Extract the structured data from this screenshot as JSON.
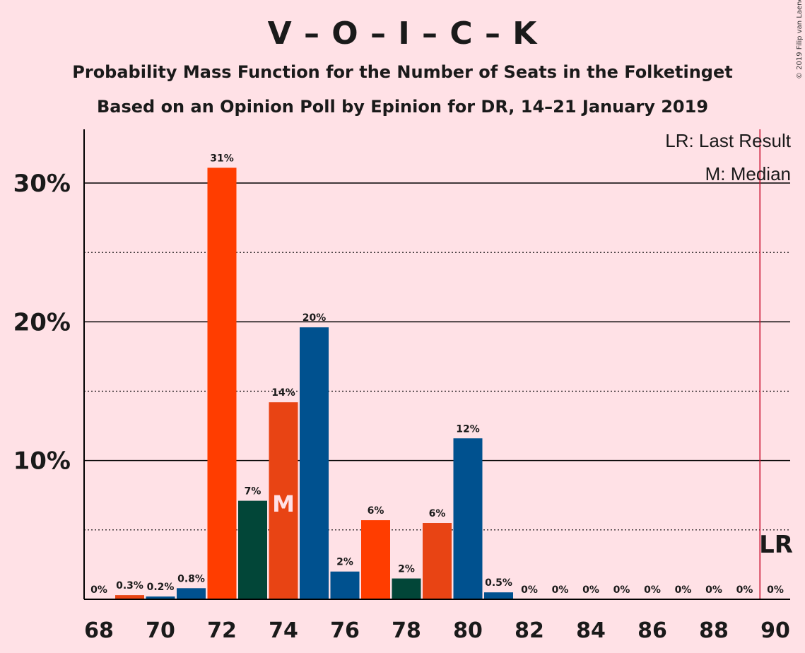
{
  "title": "V – O – I – C – K",
  "subtitle": "Probability Mass Function for the Number of Seats in the Folketinget",
  "subtitle2": "Based on an Opinion Poll by Epinion for DR, 14–21 January 2019",
  "copyright": "© 2019 Filip van Laenen",
  "legend": {
    "last_result": "LR: Last Result",
    "median": "M: Median"
  },
  "colors": {
    "background": "#FFE1E6",
    "series": [
      "#FF3D00",
      "#00518F",
      "#FF3D00",
      "#00518F",
      "#FF3D00",
      "#00457E",
      "#FF3D00",
      "#00518F",
      "#024638",
      "#E84414"
    ],
    "last_result_line": "#C8102E"
  },
  "chart_data": {
    "type": "bar",
    "title": "V – O – I – C – K",
    "xlabel": "",
    "ylabel": "",
    "x": [
      68,
      69,
      70,
      71,
      72,
      73,
      74,
      75,
      76,
      77,
      78,
      79,
      80,
      81,
      82,
      83,
      84,
      85,
      86,
      87,
      88,
      89,
      90
    ],
    "values": [
      0,
      0.3,
      0.2,
      0.8,
      31.1,
      7.1,
      14.2,
      19.6,
      2.0,
      5.7,
      1.5,
      5.5,
      11.6,
      0.5,
      0,
      0,
      0,
      0,
      0,
      0,
      0,
      0,
      0
    ],
    "labels": [
      "0%",
      "0.3%",
      "0.2%",
      "0.8%",
      "31%",
      "7%",
      "14%",
      "20%",
      "2%",
      "6%",
      "2%",
      "6%",
      "12%",
      "0.5%",
      "0%",
      "0%",
      "0%",
      "0%",
      "0%",
      "0%",
      "0%",
      "0%",
      "0%"
    ],
    "bar_colors": [
      "#FF3D00",
      "#E84414",
      "#00518F",
      "#00518F",
      "#FF3D00",
      "#024638",
      "#E84414",
      "#00518F",
      "#00518F",
      "#FF3D00",
      "#024638",
      "#E84414",
      "#00518F",
      "#00518F",
      "#FF3D00",
      "#FF3D00",
      "#FF3D00",
      "#FF3D00",
      "#FF3D00",
      "#FF3D00",
      "#FF3D00",
      "#FF3D00",
      "#FF3D00"
    ],
    "x_ticks": [
      "68",
      "70",
      "72",
      "74",
      "76",
      "78",
      "80",
      "82",
      "84",
      "86",
      "88",
      "90"
    ],
    "y_ticks": [
      "10%",
      "20%",
      "30%"
    ],
    "y_tick_values": [
      10,
      20,
      30
    ],
    "ylim": [
      0,
      34
    ],
    "grid": "solid at 10% steps, dotted at 5% steps",
    "median_seat": 74,
    "median_label": "M",
    "last_result_seat": 89.5,
    "last_result_label": "LR"
  }
}
